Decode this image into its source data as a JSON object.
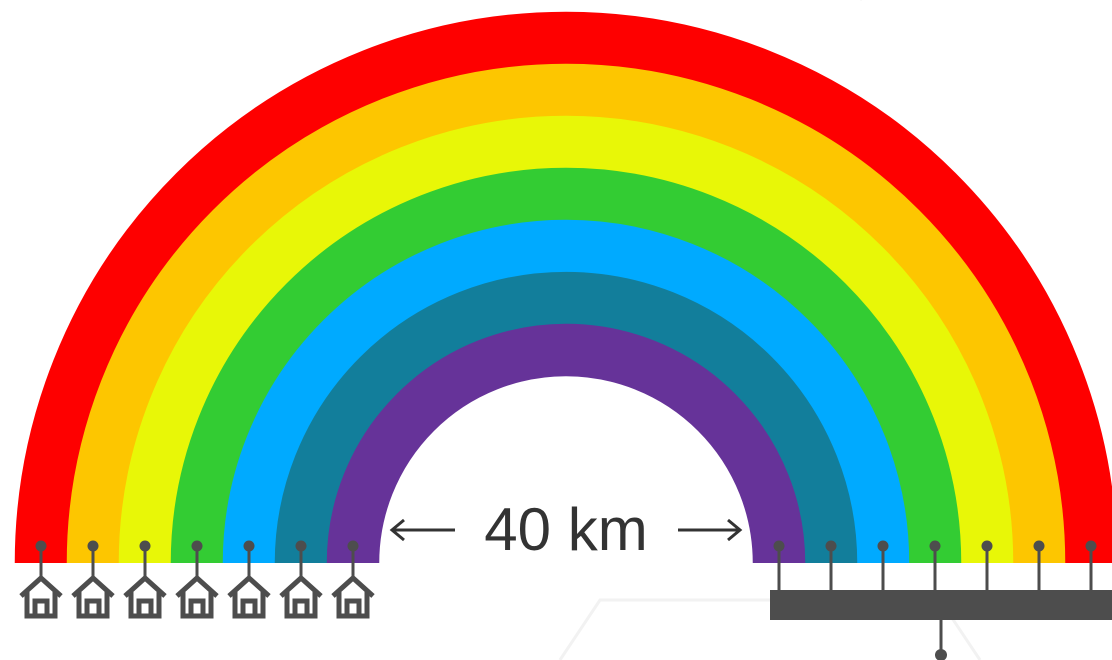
{
  "distance_label": "40 km"
}
